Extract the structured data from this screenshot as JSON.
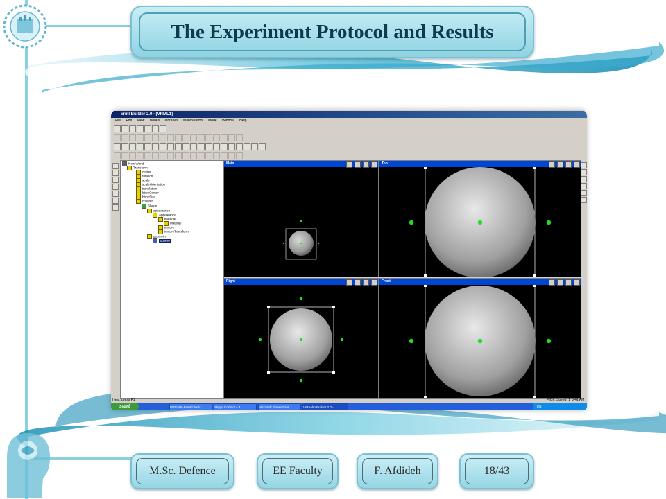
{
  "slide": {
    "title": "The Experiment Protocol and Results",
    "footer": {
      "degree": "M.Sc. Defence",
      "faculty": "EE Faculty",
      "author": "F. Afdideh",
      "page": "18/43"
    }
  },
  "app": {
    "window_title": "Vrml Builder 2.0 - [VRML1]",
    "menu": [
      "File",
      "Edit",
      "View",
      "Nodes",
      "Libraries",
      "Manipulators",
      "Mode",
      "Window",
      "Help"
    ],
    "tree": [
      {
        "label": "New World",
        "depth": 0,
        "icon": "world-icon"
      },
      {
        "label": "Transform",
        "depth": 1,
        "icon": "node-icon"
      },
      {
        "label": "center",
        "depth": 2,
        "icon": "field-icon"
      },
      {
        "label": "rotation",
        "depth": 2,
        "icon": "field-icon"
      },
      {
        "label": "scale",
        "depth": 2,
        "icon": "field-icon"
      },
      {
        "label": "scaleOrientation",
        "depth": 2,
        "icon": "field-icon"
      },
      {
        "label": "translation",
        "depth": 2,
        "icon": "field-icon"
      },
      {
        "label": "bboxCenter",
        "depth": 2,
        "icon": "field-icon"
      },
      {
        "label": "bboxSize",
        "depth": 2,
        "icon": "field-icon"
      },
      {
        "label": "children",
        "depth": 2,
        "icon": "field-icon"
      },
      {
        "label": "Shape",
        "depth": 3,
        "icon": "shape-icon"
      },
      {
        "label": "appearance",
        "depth": 4,
        "icon": "field-icon"
      },
      {
        "label": "Appearance",
        "depth": 5,
        "icon": "node-icon"
      },
      {
        "label": "material",
        "depth": 6,
        "icon": "field-icon"
      },
      {
        "label": "Material",
        "depth": 7,
        "icon": "node-icon"
      },
      {
        "label": "texture",
        "depth": 6,
        "icon": "field-icon"
      },
      {
        "label": "textureTransform",
        "depth": 6,
        "icon": "field-icon"
      },
      {
        "label": "geometry",
        "depth": 4,
        "icon": "field-icon"
      },
      {
        "label": "Sphere",
        "depth": 5,
        "icon": "sphere-icon",
        "selected": true
      }
    ],
    "viewports": {
      "main": "Main",
      "top": "Top",
      "right": "Right",
      "front": "Front"
    },
    "status": {
      "left": "Help, press F1",
      "mode": "PICK",
      "speed": "Speed: 1",
      "time": "3:41 AM"
    },
    "taskbar": {
      "start": "start",
      "tasks": [
        "MATLAB-Based Tools ...",
        "Skype Contact 4.4",
        "Microsoft PowerPoint ...",
        "VrRealm Builder 2.0 - ..."
      ],
      "lang": "EN"
    }
  },
  "colors": {
    "accent": "#0046d5",
    "title_text": "#0d3b4e",
    "handle": "#22dd22"
  }
}
